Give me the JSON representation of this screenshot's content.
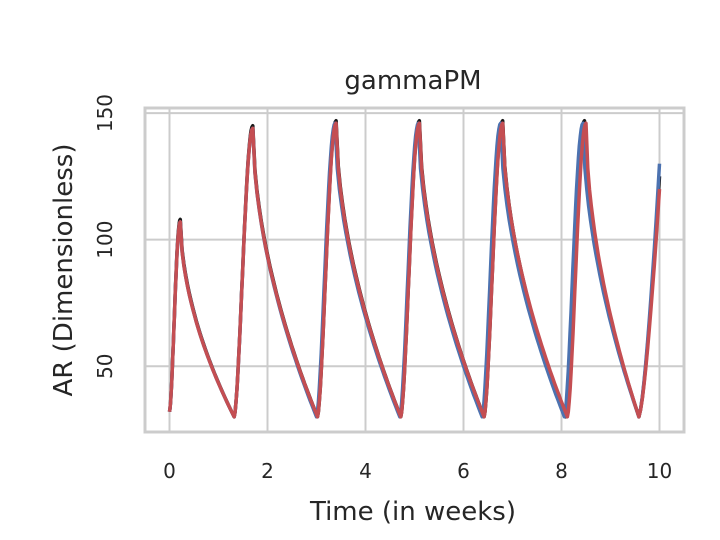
{
  "chart_data": {
    "type": "line",
    "title": "gammaPM",
    "xlabel": "Time (in weeks)",
    "ylabel": "AR (Dimensionless)",
    "xlim": [
      -0.5,
      10.5
    ],
    "ylim": [
      24,
      152
    ],
    "xticks": [
      0,
      2,
      4,
      6,
      8,
      10
    ],
    "yticks": [
      50,
      100,
      150
    ],
    "grid": true,
    "legend": false,
    "colors": {
      "black": "#1a1a1a",
      "blue": "#4c72b0",
      "red": "#c44e52",
      "grid": "#cccccc",
      "spine": "#cccccc"
    },
    "series": [
      {
        "color": "#1a1a1a",
        "peaks": [
          [
            0.22,
            108
          ],
          [
            1.7,
            145
          ],
          [
            3.4,
            147
          ],
          [
            5.1,
            147
          ],
          [
            6.8,
            147
          ],
          [
            8.47,
            147
          ]
        ],
        "end_value": 125
      },
      {
        "color": "#4c72b0",
        "peaks": [
          [
            0.22,
            107
          ],
          [
            1.7,
            144
          ],
          [
            3.38,
            146
          ],
          [
            5.08,
            146
          ],
          [
            6.76,
            146
          ],
          [
            8.44,
            146
          ]
        ],
        "end_value": 130
      },
      {
        "color": "#c44e52",
        "peaks": [
          [
            0.22,
            107
          ],
          [
            1.7,
            144
          ],
          [
            3.4,
            146
          ],
          [
            5.1,
            146
          ],
          [
            6.8,
            146
          ],
          [
            8.5,
            146
          ]
        ],
        "end_value": 120
      }
    ],
    "trough_value": 30,
    "start_value": 32
  }
}
